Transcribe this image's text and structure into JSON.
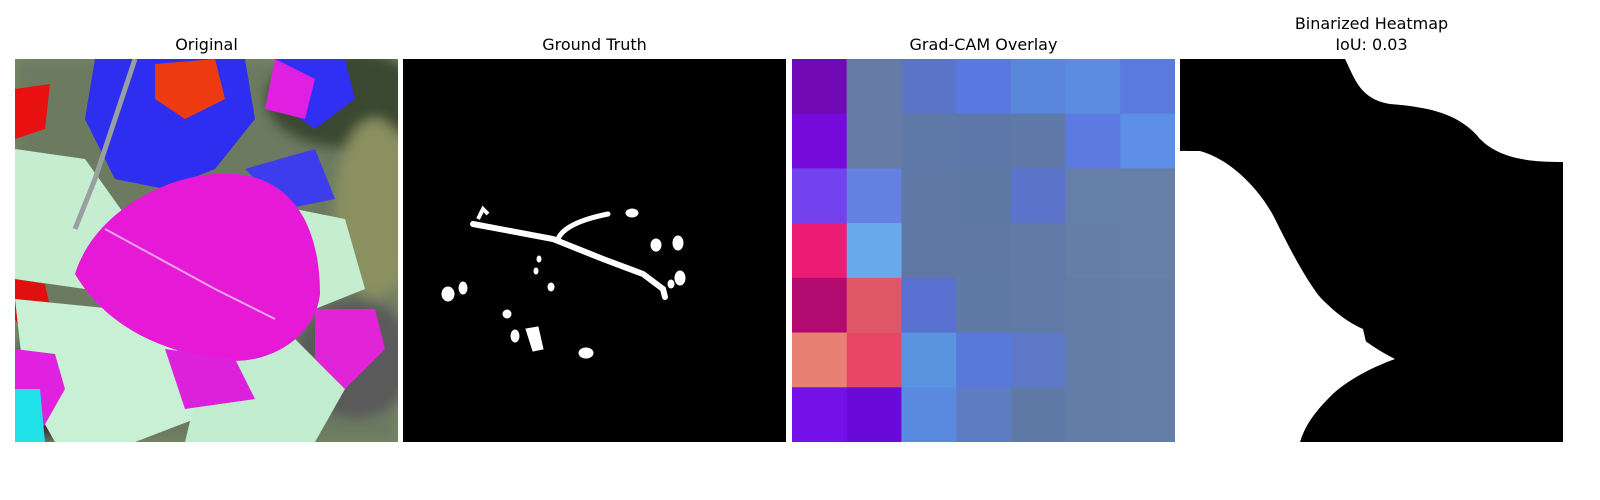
{
  "figure": {
    "panels": [
      {
        "title": "Original",
        "subtitle": ""
      },
      {
        "title": "Ground Truth",
        "subtitle": ""
      },
      {
        "title": "Grad-CAM Overlay",
        "subtitle": ""
      },
      {
        "title": "Binarized Heatmap",
        "subtitle": "IoU: 0.03"
      }
    ],
    "gradcam": {
      "grid_size": 7,
      "cells": [
        [
          "#7209b7",
          "#667ca4",
          "#5b75c8",
          "#5879e0",
          "#5a86dc",
          "#5a8ce0",
          "#5b7ae0"
        ],
        [
          "#750ada",
          "#667ca4",
          "#5e78a8",
          "#5c77a8",
          "#6079a8",
          "#5c7ae0",
          "#5d8ee8"
        ],
        [
          "#7242ee",
          "#6480e0",
          "#5f78a6",
          "#5e78a4",
          "#5c74cc",
          "#6580a8",
          "#6680a8"
        ],
        [
          "#ec1c74",
          "#68aaea",
          "#5f78a6",
          "#5f78a6",
          "#617aa8",
          "#647ea8",
          "#6680a8"
        ],
        [
          "#b30a70",
          "#e05868",
          "#5a70d0",
          "#607aa6",
          "#617aa8",
          "#637ca6",
          "#647ea8"
        ],
        [
          "#e88074",
          "#e84664",
          "#5a94e0",
          "#5878dc",
          "#5e78c8",
          "#637ca6",
          "#647ea8"
        ],
        [
          "#7510e8",
          "#6a0ad8",
          "#5a8ae0",
          "#5e7cc4",
          "#607aa8",
          "#637ca6",
          "#647ea8"
        ]
      ]
    },
    "colors": {
      "background": "#ffffff",
      "mask_foreground": "#ffffff",
      "mask_background": "#000000"
    }
  }
}
